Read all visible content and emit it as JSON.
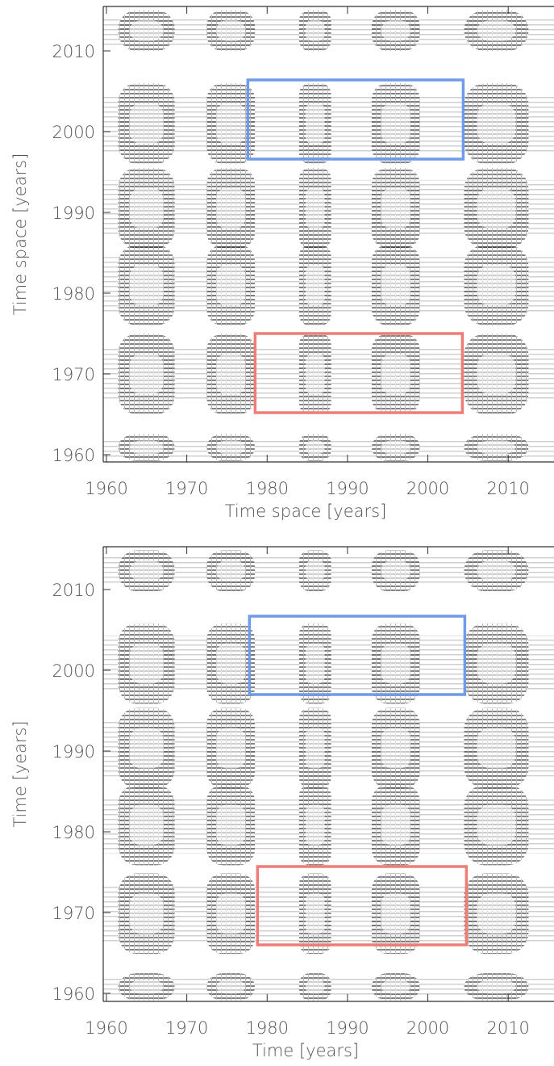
{
  "chart_data": [
    {
      "type": "heatmap",
      "x_label": "Time space [years]",
      "y_label": "Time space [years]",
      "xlim": [
        1959.6,
        2015.7
      ],
      "ylim": [
        1959.1,
        2015.5
      ],
      "xticks": [
        1960,
        1970,
        1980,
        1990,
        2000,
        2010
      ],
      "yticks": [
        1960,
        1970,
        1980,
        1990,
        2000,
        2010
      ],
      "boxes": [
        {
          "color": "#6f9be8",
          "x": [
            1977.6,
            2004.4
          ],
          "y": [
            1996.6,
            2006.4
          ]
        },
        {
          "color": "#ee7d78",
          "x": [
            1978.5,
            2004.3
          ],
          "y": [
            1965.2,
            1975.0
          ]
        }
      ]
    },
    {
      "type": "heatmap",
      "x_label": "Time [years]",
      "y_label": "Time [years]",
      "xlim": [
        1959.6,
        2015.7
      ],
      "ylim": [
        1959.0,
        2015.3
      ],
      "xticks": [
        1960,
        1970,
        1980,
        1990,
        2000,
        2010
      ],
      "yticks": [
        1960,
        1970,
        1980,
        1990,
        2000,
        2010
      ],
      "boxes": [
        {
          "color": "#6f9be8",
          "x": [
            1977.8,
            2004.6
          ],
          "y": [
            1997.0,
            2006.7
          ]
        },
        {
          "color": "#ee7d78",
          "x": [
            1978.8,
            2004.8
          ],
          "y": [
            1966.0,
            1975.7
          ]
        }
      ]
    }
  ]
}
